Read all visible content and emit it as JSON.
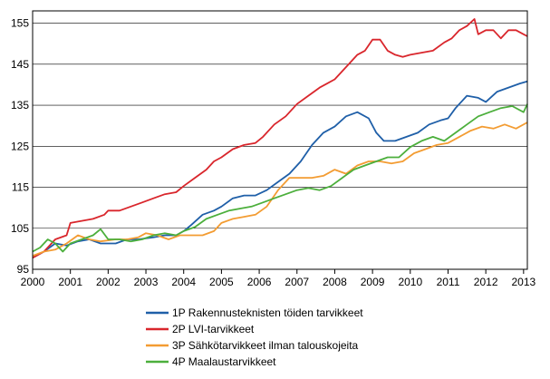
{
  "chart_data": {
    "type": "line",
    "title": "",
    "xlabel": "",
    "ylabel": "",
    "xlim": [
      2000,
      2013.1
    ],
    "ylim": [
      95,
      158
    ],
    "y_ticks": [
      95,
      105,
      115,
      125,
      135,
      145,
      155
    ],
    "x_ticks": [
      2000,
      2001,
      2002,
      2003,
      2004,
      2005,
      2006,
      2007,
      2008,
      2009,
      2010,
      2011,
      2012,
      2013
    ],
    "grid": "horizontal",
    "legend_position": "bottom",
    "series": [
      {
        "name": "1P Rakennusteknisten  töiden tarvikkeet",
        "color": "#1f5fa8",
        "points": [
          [
            2000.0,
            97.8
          ],
          [
            2000.3,
            99.3
          ],
          [
            2000.6,
            101.3
          ],
          [
            2000.9,
            100.8
          ],
          [
            2001.2,
            101.8
          ],
          [
            2001.5,
            102.3
          ],
          [
            2001.8,
            101.3
          ],
          [
            2002.2,
            101.3
          ],
          [
            2002.5,
            102.3
          ],
          [
            2002.8,
            102.3
          ],
          [
            2003.2,
            102.8
          ],
          [
            2003.5,
            103.3
          ],
          [
            2003.8,
            103.3
          ],
          [
            2004.0,
            104.3
          ],
          [
            2004.2,
            105.8
          ],
          [
            2004.5,
            108.3
          ],
          [
            2004.8,
            109.3
          ],
          [
            2005.0,
            110.3
          ],
          [
            2005.3,
            112.3
          ],
          [
            2005.6,
            113.0
          ],
          [
            2005.9,
            113.0
          ],
          [
            2006.2,
            114.3
          ],
          [
            2006.5,
            116.3
          ],
          [
            2006.8,
            118.3
          ],
          [
            2007.1,
            121.3
          ],
          [
            2007.4,
            125.3
          ],
          [
            2007.7,
            128.3
          ],
          [
            2008.0,
            129.8
          ],
          [
            2008.3,
            132.3
          ],
          [
            2008.6,
            133.3
          ],
          [
            2008.9,
            131.8
          ],
          [
            2009.1,
            128.3
          ],
          [
            2009.3,
            126.3
          ],
          [
            2009.6,
            126.3
          ],
          [
            2009.9,
            127.3
          ],
          [
            2010.2,
            128.3
          ],
          [
            2010.5,
            130.3
          ],
          [
            2010.8,
            131.3
          ],
          [
            2011.0,
            131.8
          ],
          [
            2011.2,
            134.3
          ],
          [
            2011.5,
            137.3
          ],
          [
            2011.8,
            136.8
          ],
          [
            2012.0,
            135.8
          ],
          [
            2012.3,
            138.3
          ],
          [
            2012.6,
            139.3
          ],
          [
            2012.9,
            140.3
          ],
          [
            2013.1,
            140.8
          ]
        ]
      },
      {
        "name": "2P LVI-tarvikkeet",
        "color": "#d9262c",
        "points": [
          [
            2000.0,
            97.8
          ],
          [
            2000.3,
            99.3
          ],
          [
            2000.6,
            102.3
          ],
          [
            2000.9,
            103.3
          ],
          [
            2001.0,
            106.3
          ],
          [
            2001.3,
            106.8
          ],
          [
            2001.6,
            107.3
          ],
          [
            2001.9,
            108.3
          ],
          [
            2002.0,
            109.3
          ],
          [
            2002.3,
            109.3
          ],
          [
            2002.6,
            110.3
          ],
          [
            2002.9,
            111.3
          ],
          [
            2003.2,
            112.3
          ],
          [
            2003.5,
            113.3
          ],
          [
            2003.8,
            113.8
          ],
          [
            2004.0,
            115.3
          ],
          [
            2004.3,
            117.3
          ],
          [
            2004.6,
            119.3
          ],
          [
            2004.8,
            121.3
          ],
          [
            2005.0,
            122.3
          ],
          [
            2005.3,
            124.3
          ],
          [
            2005.6,
            125.3
          ],
          [
            2005.9,
            125.8
          ],
          [
            2006.1,
            127.3
          ],
          [
            2006.4,
            130.3
          ],
          [
            2006.7,
            132.3
          ],
          [
            2007.0,
            135.3
          ],
          [
            2007.3,
            137.3
          ],
          [
            2007.6,
            139.3
          ],
          [
            2007.8,
            140.3
          ],
          [
            2008.0,
            141.3
          ],
          [
            2008.3,
            144.3
          ],
          [
            2008.6,
            147.3
          ],
          [
            2008.8,
            148.3
          ],
          [
            2009.0,
            151.0
          ],
          [
            2009.2,
            151.0
          ],
          [
            2009.4,
            148.3
          ],
          [
            2009.6,
            147.3
          ],
          [
            2009.8,
            146.8
          ],
          [
            2010.0,
            147.3
          ],
          [
            2010.3,
            147.8
          ],
          [
            2010.6,
            148.3
          ],
          [
            2010.9,
            150.3
          ],
          [
            2011.1,
            151.3
          ],
          [
            2011.3,
            153.3
          ],
          [
            2011.5,
            154.3
          ],
          [
            2011.7,
            156.0
          ],
          [
            2011.8,
            152.3
          ],
          [
            2012.0,
            153.3
          ],
          [
            2012.2,
            153.3
          ],
          [
            2012.4,
            151.3
          ],
          [
            2012.6,
            153.3
          ],
          [
            2012.8,
            153.3
          ],
          [
            2013.0,
            152.3
          ],
          [
            2013.1,
            151.8
          ]
        ]
      },
      {
        "name": "3P Sähkötarvikkeet  ilman talouskojeita",
        "color": "#f39c32",
        "points": [
          [
            2000.0,
            98.3
          ],
          [
            2000.3,
            99.3
          ],
          [
            2000.6,
            99.8
          ],
          [
            2000.9,
            101.3
          ],
          [
            2001.2,
            103.3
          ],
          [
            2001.5,
            102.3
          ],
          [
            2001.8,
            101.8
          ],
          [
            2002.2,
            102.3
          ],
          [
            2002.5,
            102.3
          ],
          [
            2002.8,
            102.8
          ],
          [
            2003.0,
            103.8
          ],
          [
            2003.3,
            103.3
          ],
          [
            2003.6,
            102.3
          ],
          [
            2003.9,
            103.3
          ],
          [
            2004.2,
            103.3
          ],
          [
            2004.5,
            103.3
          ],
          [
            2004.8,
            104.3
          ],
          [
            2005.0,
            106.3
          ],
          [
            2005.3,
            107.3
          ],
          [
            2005.6,
            107.8
          ],
          [
            2005.9,
            108.3
          ],
          [
            2006.2,
            110.3
          ],
          [
            2006.5,
            114.3
          ],
          [
            2006.8,
            117.3
          ],
          [
            2007.1,
            117.3
          ],
          [
            2007.4,
            117.3
          ],
          [
            2007.7,
            117.8
          ],
          [
            2008.0,
            119.3
          ],
          [
            2008.3,
            118.3
          ],
          [
            2008.6,
            120.3
          ],
          [
            2008.9,
            121.3
          ],
          [
            2009.2,
            121.3
          ],
          [
            2009.5,
            120.8
          ],
          [
            2009.8,
            121.3
          ],
          [
            2010.1,
            123.3
          ],
          [
            2010.4,
            124.3
          ],
          [
            2010.7,
            125.3
          ],
          [
            2011.0,
            125.8
          ],
          [
            2011.3,
            127.3
          ],
          [
            2011.6,
            128.8
          ],
          [
            2011.9,
            129.8
          ],
          [
            2012.2,
            129.3
          ],
          [
            2012.5,
            130.3
          ],
          [
            2012.8,
            129.3
          ],
          [
            2013.1,
            130.8
          ]
        ]
      },
      {
        "name": "4P Maalaustarvikkeet",
        "color": "#4caf3c",
        "points": [
          [
            2000.0,
            99.3
          ],
          [
            2000.2,
            100.3
          ],
          [
            2000.4,
            102.3
          ],
          [
            2000.6,
            101.3
          ],
          [
            2000.8,
            99.3
          ],
          [
            2001.0,
            101.3
          ],
          [
            2001.3,
            102.3
          ],
          [
            2001.6,
            103.3
          ],
          [
            2001.8,
            104.8
          ],
          [
            2002.0,
            102.3
          ],
          [
            2002.3,
            102.3
          ],
          [
            2002.6,
            101.8
          ],
          [
            2002.9,
            102.3
          ],
          [
            2003.2,
            103.3
          ],
          [
            2003.5,
            103.8
          ],
          [
            2003.8,
            103.3
          ],
          [
            2004.0,
            104.3
          ],
          [
            2004.3,
            105.3
          ],
          [
            2004.6,
            107.3
          ],
          [
            2004.9,
            108.3
          ],
          [
            2005.2,
            109.3
          ],
          [
            2005.5,
            109.8
          ],
          [
            2005.8,
            110.3
          ],
          [
            2006.1,
            111.3
          ],
          [
            2006.4,
            112.3
          ],
          [
            2006.7,
            113.3
          ],
          [
            2007.0,
            114.3
          ],
          [
            2007.3,
            114.8
          ],
          [
            2007.6,
            114.3
          ],
          [
            2007.9,
            115.3
          ],
          [
            2008.2,
            117.3
          ],
          [
            2008.5,
            119.3
          ],
          [
            2008.8,
            120.3
          ],
          [
            2009.1,
            121.3
          ],
          [
            2009.4,
            122.3
          ],
          [
            2009.7,
            122.3
          ],
          [
            2010.0,
            124.8
          ],
          [
            2010.3,
            126.3
          ],
          [
            2010.6,
            127.3
          ],
          [
            2010.9,
            126.3
          ],
          [
            2011.2,
            128.3
          ],
          [
            2011.5,
            130.3
          ],
          [
            2011.8,
            132.3
          ],
          [
            2012.1,
            133.3
          ],
          [
            2012.4,
            134.3
          ],
          [
            2012.7,
            134.8
          ],
          [
            2013.0,
            133.3
          ],
          [
            2013.1,
            135.3
          ]
        ]
      }
    ]
  }
}
